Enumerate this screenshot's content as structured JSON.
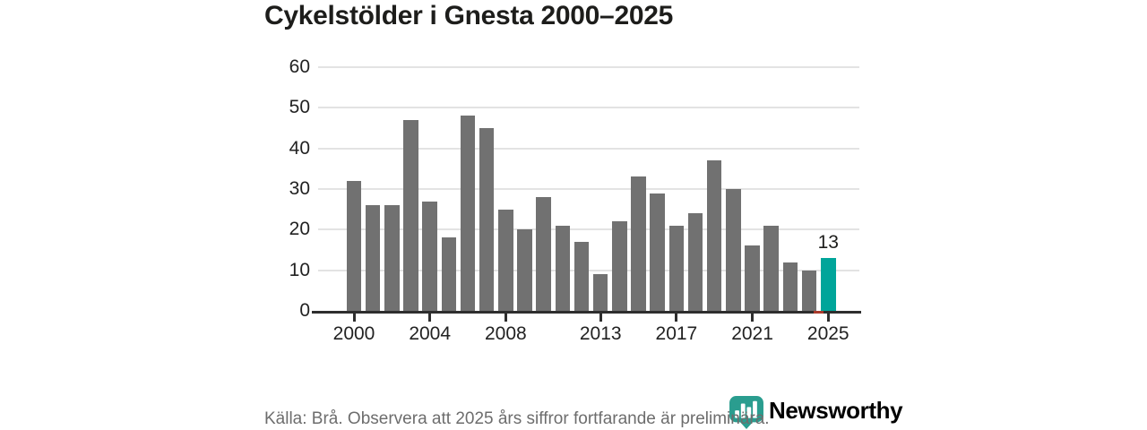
{
  "title": "Cykelstölder i Gnesta 2000–2025",
  "chart_data": {
    "type": "bar",
    "title": "Cykelstölder i Gnesta 2000–2025",
    "categories": [
      2000,
      2001,
      2002,
      2003,
      2004,
      2005,
      2006,
      2007,
      2008,
      2009,
      2010,
      2011,
      2012,
      2013,
      2014,
      2015,
      2016,
      2017,
      2018,
      2019,
      2020,
      2021,
      2022,
      2023,
      2024,
      2025
    ],
    "values": [
      32,
      26,
      26,
      47,
      27,
      18,
      48,
      45,
      25,
      20,
      28,
      21,
      17,
      9,
      22,
      33,
      29,
      21,
      24,
      37,
      30,
      16,
      21,
      12,
      10,
      13
    ],
    "highlight_index": 25,
    "highlight_label": "13",
    "y_ticks": [
      0,
      10,
      20,
      30,
      40,
      50,
      60
    ],
    "ylim": [
      0,
      60
    ],
    "x_tick_years": [
      2000,
      2004,
      2008,
      2013,
      2017,
      2021,
      2025
    ],
    "x_tick_labels": [
      "2000",
      "2004",
      "2008",
      "2013",
      "2017",
      "2021",
      "2025"
    ],
    "grid": "horizontal",
    "legend": "none",
    "xlabel": "",
    "ylabel": ""
  },
  "colors": {
    "bar": "#717171",
    "highlight": "#00a59a",
    "gridline": "#e3e3e3",
    "axis": "#2e2e2e",
    "prelim_marker": "#a93a2c",
    "title_text": "#1d1d1b",
    "axis_text": "#222222",
    "source_text": "#6d6d6d",
    "logo": "#2a9d8f"
  },
  "footer": {
    "source": "Källa: Brå. Observera att 2025 års siffror fortfarande är preliminära.",
    "logo_text": "Newsworthy"
  }
}
